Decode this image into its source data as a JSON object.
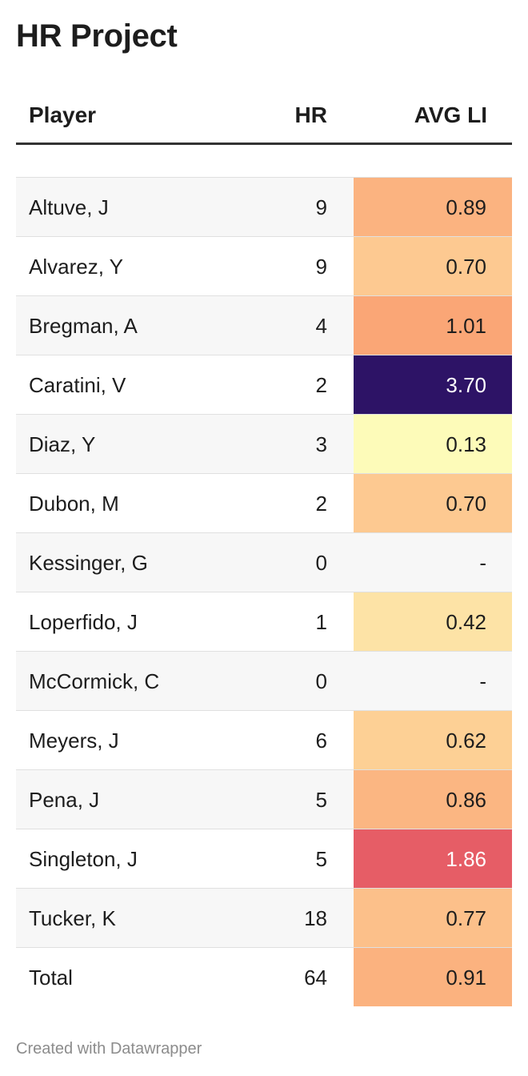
{
  "title": "HR Project",
  "footer": "Created with Datawrapper",
  "chart_data": {
    "type": "table",
    "columns": [
      "Player",
      "HR",
      "AVG LI"
    ],
    "rows": [
      {
        "player": "Altuve, J",
        "hr": "9",
        "li": "0.89",
        "bg": "#fbb380",
        "fg": "#1d1d1d"
      },
      {
        "player": "Alvarez, Y",
        "hr": "9",
        "li": "0.70",
        "bg": "#fdc991",
        "fg": "#1d1d1d"
      },
      {
        "player": "Bregman, A",
        "hr": "4",
        "li": "1.01",
        "bg": "#faa676",
        "fg": "#1d1d1d"
      },
      {
        "player": "Caratini, V",
        "hr": "2",
        "li": "3.70",
        "bg": "#2d1366",
        "fg": "#ffffff"
      },
      {
        "player": "Diaz, Y",
        "hr": "3",
        "li": "0.13",
        "bg": "#fdfbb9",
        "fg": "#1d1d1d"
      },
      {
        "player": "Dubon, M",
        "hr": "2",
        "li": "0.70",
        "bg": "#fdc991",
        "fg": "#1d1d1d"
      },
      {
        "player": "Kessinger, G",
        "hr": "0",
        "li": "-",
        "bg": "",
        "fg": "#1d1d1d"
      },
      {
        "player": "Loperfido, J",
        "hr": "1",
        "li": "0.42",
        "bg": "#fde3a6",
        "fg": "#1d1d1d"
      },
      {
        "player": "McCormick, C",
        "hr": "0",
        "li": "-",
        "bg": "",
        "fg": "#1d1d1d"
      },
      {
        "player": "Meyers, J",
        "hr": "6",
        "li": "0.62",
        "bg": "#fdd095",
        "fg": "#1d1d1d"
      },
      {
        "player": "Pena, J",
        "hr": "5",
        "li": "0.86",
        "bg": "#fbb682",
        "fg": "#1d1d1d"
      },
      {
        "player": "Singleton, J",
        "hr": "5",
        "li": "1.86",
        "bg": "#e65d66",
        "fg": "#ffffff"
      },
      {
        "player": "Tucker, K",
        "hr": "18",
        "li": "0.77",
        "bg": "#fcc08a",
        "fg": "#1d1d1d"
      },
      {
        "player": "Total",
        "hr": "64",
        "li": "0.91",
        "bg": "#fbb27f",
        "fg": "#1d1d1d"
      }
    ]
  }
}
